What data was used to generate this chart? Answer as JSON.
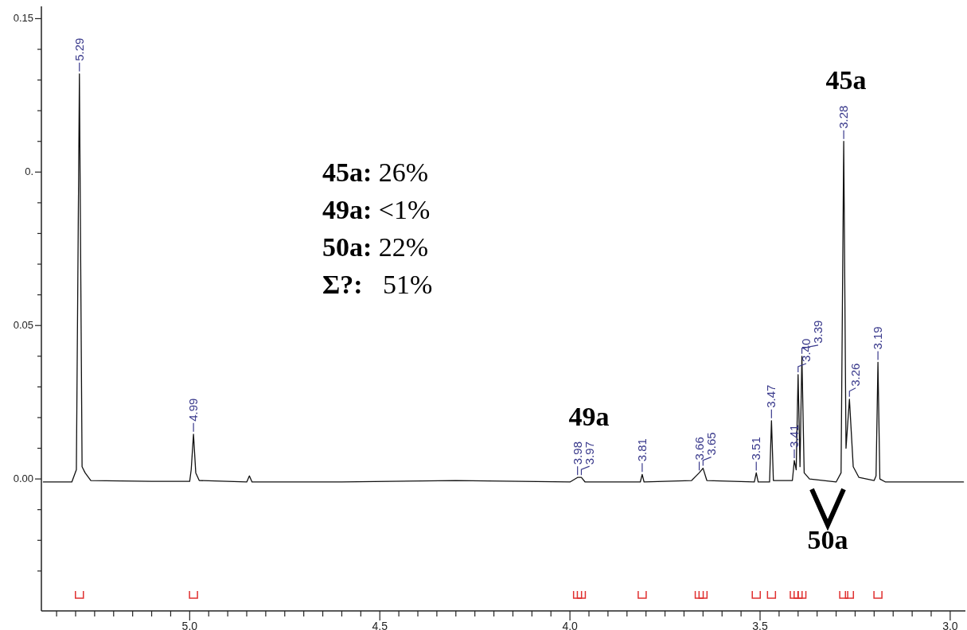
{
  "chart_data": {
    "type": "line",
    "x": [
      5.385,
      5.31,
      5.298,
      5.29,
      5.283,
      5.275,
      5.26,
      5.1,
      5.0,
      4.996,
      4.99,
      4.984,
      4.975,
      4.85,
      4.843,
      4.836,
      4.6,
      4.3,
      4.0,
      3.98,
      3.97,
      3.96,
      3.815,
      3.81,
      3.805,
      3.68,
      3.66,
      3.65,
      3.64,
      3.515,
      3.51,
      3.505,
      3.475,
      3.47,
      3.465,
      3.415,
      3.41,
      3.405,
      3.4,
      3.395,
      3.39,
      3.384,
      3.37,
      3.3,
      3.287,
      3.28,
      3.274,
      3.265,
      3.255,
      3.24,
      3.2,
      3.195,
      3.19,
      3.185,
      3.17,
      3.0,
      2.965
    ],
    "series": [
      {
        "color": "#111111",
        "values": [
          -0.001,
          -0.001,
          0.003,
          0.132,
          0.004,
          0.002,
          -0.0005,
          -0.0008,
          -0.0008,
          0.003,
          0.0146,
          0.002,
          -0.0005,
          -0.001,
          0.001,
          -0.001,
          -0.001,
          -0.0005,
          -0.001,
          0.0005,
          0.0005,
          -0.001,
          -0.001,
          0.0015,
          -0.001,
          -0.0005,
          0.002,
          0.0035,
          -0.0005,
          -0.001,
          0.002,
          -0.001,
          -0.001,
          0.019,
          -0.0005,
          -0.0005,
          0.006,
          0.003,
          0.034,
          0.004,
          0.04,
          0.002,
          0,
          -0.001,
          0.002,
          0.11,
          0.01,
          0.026,
          0.004,
          0.0005,
          -0.0005,
          0.001,
          0.038,
          0,
          -0.001,
          -0.001,
          -0.001
        ]
      }
    ],
    "xlim": [
      5.39,
      2.96
    ],
    "xticks": [
      {
        "value": 5.35,
        "label": null
      },
      {
        "value": 5.3,
        "label": null
      },
      {
        "value": 5.25,
        "label": null
      },
      {
        "value": 5.2,
        "label": null
      },
      {
        "value": 5.15,
        "label": null
      },
      {
        "value": 5.1,
        "label": null
      },
      {
        "value": 5.05,
        "label": null
      },
      {
        "value": 5,
        "label": "5.0"
      },
      {
        "value": 4.95,
        "label": null
      },
      {
        "value": 4.9,
        "label": null
      },
      {
        "value": 4.85,
        "label": null
      },
      {
        "value": 4.8,
        "label": null
      },
      {
        "value": 4.75,
        "label": null
      },
      {
        "value": 4.7,
        "label": null
      },
      {
        "value": 4.65,
        "label": null
      },
      {
        "value": 4.6,
        "label": null
      },
      {
        "value": 4.55,
        "label": null
      },
      {
        "value": 4.5,
        "label": "4.5"
      },
      {
        "value": 4.45,
        "label": null
      },
      {
        "value": 4.4,
        "label": null
      },
      {
        "value": 4.35,
        "label": null
      },
      {
        "value": 4.3,
        "label": null
      },
      {
        "value": 4.25,
        "label": null
      },
      {
        "value": 4.2,
        "label": null
      },
      {
        "value": 4.15,
        "label": null
      },
      {
        "value": 4.1,
        "label": null
      },
      {
        "value": 4.05,
        "label": null
      },
      {
        "value": 4,
        "label": "4.0"
      },
      {
        "value": 3.95,
        "label": null
      },
      {
        "value": 3.9,
        "label": null
      },
      {
        "value": 3.85,
        "label": null
      },
      {
        "value": 3.8,
        "label": null
      },
      {
        "value": 3.75,
        "label": null
      },
      {
        "value": 3.7,
        "label": null
      },
      {
        "value": 3.65,
        "label": null
      },
      {
        "value": 3.6,
        "label": null
      },
      {
        "value": 3.55,
        "label": null
      },
      {
        "value": 3.5,
        "label": "3.5"
      },
      {
        "value": 3.45,
        "label": null
      },
      {
        "value": 3.4,
        "label": null
      },
      {
        "value": 3.35,
        "label": null
      },
      {
        "value": 3.3,
        "label": null
      },
      {
        "value": 3.25,
        "label": null
      },
      {
        "value": 3.2,
        "label": null
      },
      {
        "value": 3.15,
        "label": null
      },
      {
        "value": 3.1,
        "label": null
      },
      {
        "value": 3.05,
        "label": null
      },
      {
        "value": 3,
        "label": "3.0"
      }
    ],
    "ylim": [
      -0.043,
      0.154
    ],
    "yticks": [
      {
        "value": -0.03,
        "label": null
      },
      {
        "value": -0.02,
        "label": null
      },
      {
        "value": -0.01,
        "label": null
      },
      {
        "value": 0,
        "label": "0.00"
      },
      {
        "value": 0.01,
        "label": null
      },
      {
        "value": 0.02,
        "label": null
      },
      {
        "value": 0.03,
        "label": null
      },
      {
        "value": 0.04,
        "label": null
      },
      {
        "value": 0.05,
        "label": "0.05"
      },
      {
        "value": 0.06,
        "label": null
      },
      {
        "value": 0.07,
        "label": null
      },
      {
        "value": 0.08,
        "label": null
      },
      {
        "value": 0.09,
        "label": null
      },
      {
        "value": 0.1,
        "label": "0."
      },
      {
        "value": 0.11,
        "label": null
      },
      {
        "value": 0.12,
        "label": null
      },
      {
        "value": 0.13,
        "label": null
      },
      {
        "value": 0.14,
        "label": null
      },
      {
        "value": 0.15,
        "label": "0.15"
      }
    ],
    "grid": false,
    "marker": "none",
    "line_style": "solid",
    "annotations": [
      "45a: 26%",
      "49a: <1%",
      "50a: 22%",
      "Σ?:   51%",
      "45a",
      "49a",
      "50a",
      {
        "text": "5.29",
        "x": 5.29,
        "y": 0.132
      },
      {
        "text": "4.99",
        "x": 4.99,
        "y": 0.0146
      },
      {
        "text": "3.98",
        "x": 3.98,
        "y": 0.0005
      },
      {
        "text": "3.97",
        "x": 3.97,
        "y": 0.0005
      },
      {
        "text": "3.81",
        "x": 3.81,
        "y": 0.0015
      },
      {
        "text": "3.66",
        "x": 3.66,
        "y": 0.002
      },
      {
        "text": "3.65",
        "x": 3.65,
        "y": 0.0035
      },
      {
        "text": "3.51",
        "x": 3.51,
        "y": 0.002
      },
      {
        "text": "3.47",
        "x": 3.47,
        "y": 0.019
      },
      {
        "text": "3.41",
        "x": 3.41,
        "y": 0.006
      },
      {
        "text": "3.40",
        "x": 3.4,
        "y": 0.034
      },
      {
        "text": "3.39",
        "x": 3.39,
        "y": 0.04
      },
      {
        "text": "3.28",
        "x": 3.28,
        "y": 0.11
      },
      {
        "text": "3.26",
        "x": 3.265,
        "y": 0.026
      },
      {
        "text": "3.19",
        "x": 3.19,
        "y": 0.038
      }
    ]
  }
}
